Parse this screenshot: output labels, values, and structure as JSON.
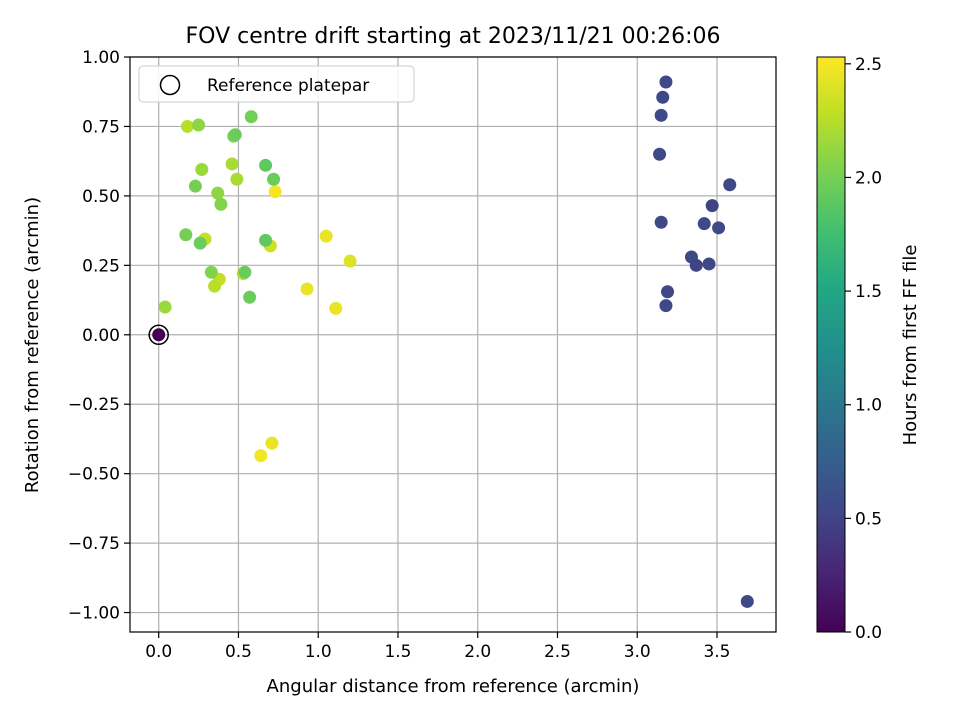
{
  "chart_data": {
    "type": "scatter",
    "title": "FOV centre drift starting at 2023/11/21 00:26:06",
    "xlabel": "Angular distance from reference (arcmin)",
    "ylabel": "Rotation from reference (arcmin)",
    "xlim": [
      -0.18,
      3.87
    ],
    "ylim": [
      -1.07,
      1.0
    ],
    "xticks": [
      0.0,
      0.5,
      1.0,
      1.5,
      2.0,
      2.5,
      3.0,
      3.5
    ],
    "xtick_labels": [
      "0.0",
      "0.5",
      "1.0",
      "1.5",
      "2.0",
      "2.5",
      "3.0",
      "3.5"
    ],
    "yticks": [
      1.0,
      0.75,
      0.5,
      0.25,
      0.0,
      -0.25,
      -0.5,
      -0.75,
      -1.0
    ],
    "ytick_labels": [
      "1.00",
      "0.75",
      "0.50",
      "0.25",
      "0.00",
      "−0.25",
      "−0.50",
      "−0.75",
      "−1.00"
    ],
    "grid": true,
    "legend": {
      "placement": "upper-left",
      "entries": [
        {
          "label": "Reference platepar",
          "marker": "open-circle"
        }
      ]
    },
    "colorbar": {
      "label": "Hours from first FF file",
      "min": 0.0,
      "max": 2.53,
      "colormap": "viridis",
      "ticks": [
        0.0,
        0.5,
        1.0,
        1.5,
        2.0,
        2.5
      ],
      "tick_labels": [
        "0.0",
        "0.5",
        "1.0",
        "1.5",
        "2.0",
        "2.5"
      ]
    },
    "reference_point": {
      "x": 0.0,
      "y": 0.0
    },
    "points": [
      {
        "x": 0.0,
        "y": 0.0,
        "c": 0.0
      },
      {
        "x": 3.18,
        "y": 0.91,
        "c": 0.55
      },
      {
        "x": 3.16,
        "y": 0.855,
        "c": 0.55
      },
      {
        "x": 3.15,
        "y": 0.79,
        "c": 0.55
      },
      {
        "x": 3.14,
        "y": 0.65,
        "c": 0.55
      },
      {
        "x": 3.15,
        "y": 0.405,
        "c": 0.55
      },
      {
        "x": 3.58,
        "y": 0.54,
        "c": 0.55
      },
      {
        "x": 3.47,
        "y": 0.465,
        "c": 0.5
      },
      {
        "x": 3.42,
        "y": 0.4,
        "c": 0.55
      },
      {
        "x": 3.51,
        "y": 0.385,
        "c": 0.55
      },
      {
        "x": 3.34,
        "y": 0.28,
        "c": 0.55
      },
      {
        "x": 3.37,
        "y": 0.25,
        "c": 0.5
      },
      {
        "x": 3.45,
        "y": 0.255,
        "c": 0.55
      },
      {
        "x": 3.19,
        "y": 0.155,
        "c": 0.55
      },
      {
        "x": 3.18,
        "y": 0.105,
        "c": 0.55
      },
      {
        "x": 3.69,
        "y": -0.96,
        "c": 0.55
      },
      {
        "x": 0.58,
        "y": 0.785,
        "c": 1.98
      },
      {
        "x": 0.18,
        "y": 0.75,
        "c": 2.25
      },
      {
        "x": 0.25,
        "y": 0.755,
        "c": 2.1
      },
      {
        "x": 0.47,
        "y": 0.715,
        "c": 2.05
      },
      {
        "x": 0.48,
        "y": 0.72,
        "c": 1.95
      },
      {
        "x": 0.27,
        "y": 0.595,
        "c": 2.15
      },
      {
        "x": 0.46,
        "y": 0.615,
        "c": 2.2
      },
      {
        "x": 0.67,
        "y": 0.61,
        "c": 1.9
      },
      {
        "x": 0.23,
        "y": 0.535,
        "c": 2.0
      },
      {
        "x": 0.49,
        "y": 0.56,
        "c": 2.2
      },
      {
        "x": 0.72,
        "y": 0.56,
        "c": 1.95
      },
      {
        "x": 0.37,
        "y": 0.51,
        "c": 2.1
      },
      {
        "x": 0.73,
        "y": 0.515,
        "c": 2.5
      },
      {
        "x": 0.39,
        "y": 0.47,
        "c": 2.05
      },
      {
        "x": 0.17,
        "y": 0.36,
        "c": 2.0
      },
      {
        "x": 0.26,
        "y": 0.33,
        "c": 1.95
      },
      {
        "x": 0.29,
        "y": 0.345,
        "c": 2.3
      },
      {
        "x": 0.67,
        "y": 0.34,
        "c": 1.9
      },
      {
        "x": 0.7,
        "y": 0.32,
        "c": 2.35
      },
      {
        "x": 1.05,
        "y": 0.355,
        "c": 2.45
      },
      {
        "x": 0.33,
        "y": 0.225,
        "c": 2.05
      },
      {
        "x": 0.54,
        "y": 0.225,
        "c": 1.95
      },
      {
        "x": 0.53,
        "y": 0.22,
        "c": 2.3
      },
      {
        "x": 1.2,
        "y": 0.265,
        "c": 2.4
      },
      {
        "x": 0.38,
        "y": 0.2,
        "c": 2.3
      },
      {
        "x": 0.35,
        "y": 0.175,
        "c": 2.25
      },
      {
        "x": 0.57,
        "y": 0.135,
        "c": 1.95
      },
      {
        "x": 0.93,
        "y": 0.165,
        "c": 2.45
      },
      {
        "x": 0.04,
        "y": 0.1,
        "c": 2.15
      },
      {
        "x": 1.11,
        "y": 0.095,
        "c": 2.45
      },
      {
        "x": 0.64,
        "y": -0.435,
        "c": 2.5
      },
      {
        "x": 0.71,
        "y": -0.39,
        "c": 2.45
      }
    ]
  }
}
